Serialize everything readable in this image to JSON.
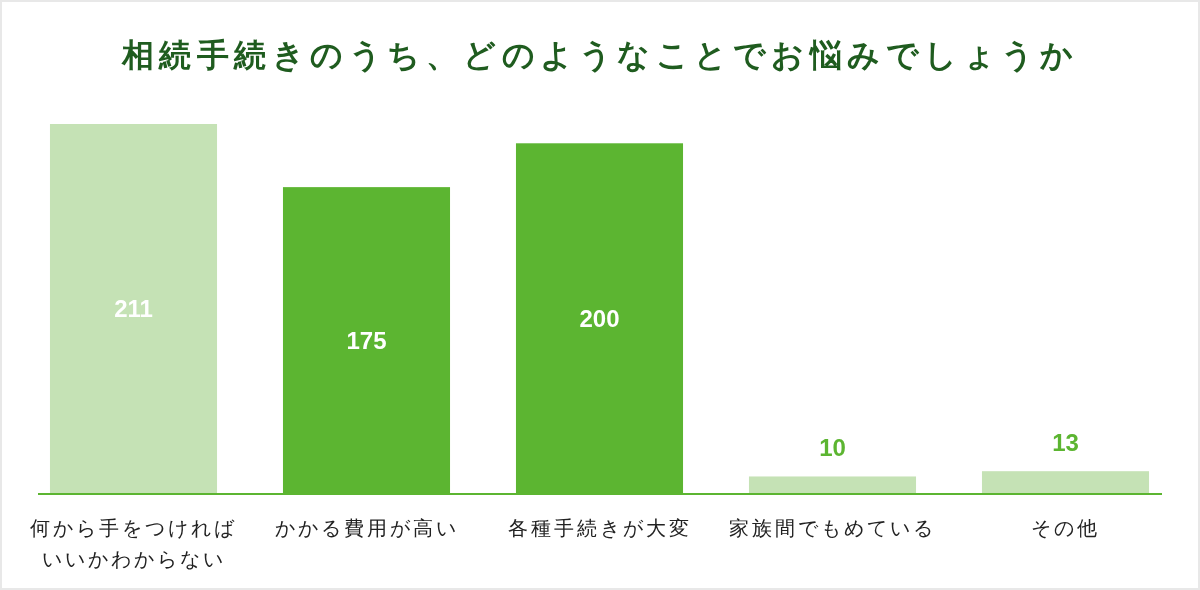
{
  "chart_data": {
    "type": "bar",
    "title": "相続手続きのうち、どのようなことでお悩みでしょうか",
    "categories": [
      "何から手をつければいいかわからない",
      "かかる費用が高い",
      "各種手続きが大変",
      "家族間でもめている",
      "その他"
    ],
    "values": [
      211,
      175,
      200,
      10,
      13
    ],
    "colors": [
      "#c5e2b5",
      "#5cb531",
      "#5cb531",
      "#c5e2b5",
      "#c5e2b5"
    ],
    "data_labels": true
  }
}
